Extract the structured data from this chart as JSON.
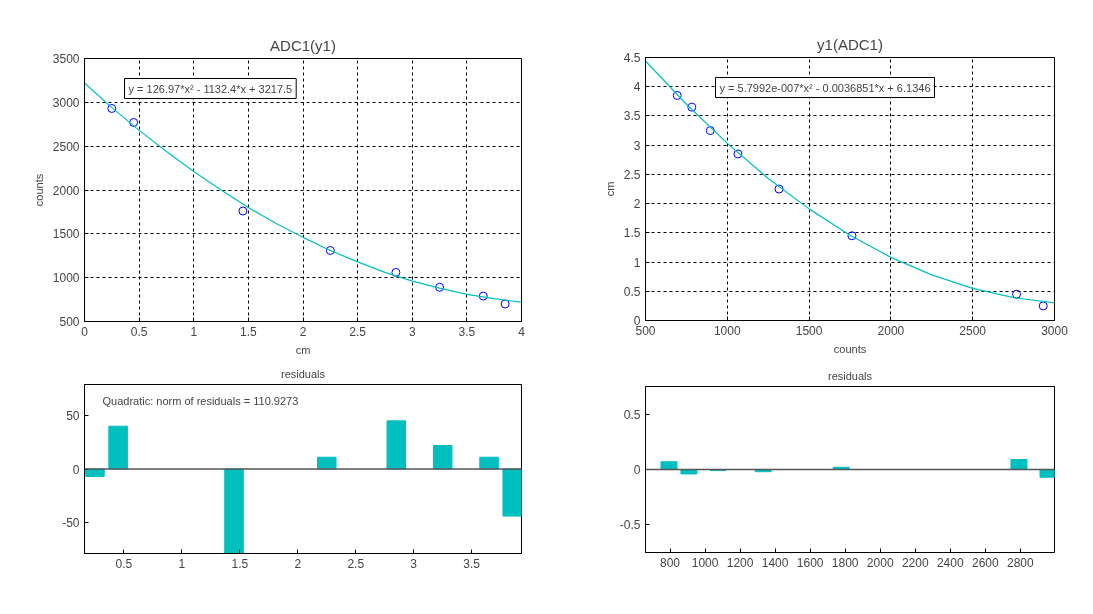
{
  "chart_data": [
    {
      "type": "scatter",
      "title": "ADC1(y1)",
      "xlabel": "cm",
      "ylabel": "counts",
      "xlim": [
        0,
        4
      ],
      "ylim": [
        500,
        3500
      ],
      "xticks": [
        0,
        0.5,
        1,
        1.5,
        2,
        2.5,
        3,
        3.5,
        4
      ],
      "yticks": [
        500,
        1000,
        1500,
        2000,
        2500,
        3000,
        3500
      ],
      "grid": true,
      "annotations": [
        "y = 126.97*x² - 1132.4*x + 3217.5"
      ],
      "series": [
        {
          "type": "scatter",
          "marker": "circle",
          "color": "#0000ff",
          "x": [
            0.25,
            0.45,
            1.45,
            2.25,
            2.85,
            3.25,
            3.65,
            3.85
          ],
          "values": [
            2930,
            2770,
            1760,
            1310,
            1060,
            890,
            790,
            700
          ]
        },
        {
          "type": "line",
          "color": "#00c0c0",
          "x": [
            0,
            0.25,
            0.5,
            0.75,
            1,
            1.25,
            1.5,
            1.75,
            2,
            2.25,
            2.5,
            2.75,
            3,
            3.25,
            3.5,
            3.75,
            4
          ],
          "values": [
            3220,
            2940,
            2680,
            2440,
            2210,
            2000,
            1800,
            1620,
            1460,
            1310,
            1180,
            1060,
            960,
            880,
            810,
            760,
            720
          ]
        }
      ]
    },
    {
      "type": "bar",
      "title": "residuals",
      "xlim": [
        0.16,
        3.93
      ],
      "ylim": [
        -79,
        79
      ],
      "xticks": [
        0.5,
        1,
        1.5,
        2,
        2.5,
        3,
        3.5
      ],
      "yticks": [
        -50,
        0,
        50
      ],
      "annotations": [
        "Quadratic: norm of residuals = 110.9273"
      ],
      "ref_lines": [
        {
          "axis": "y",
          "value": 0,
          "color": "#555555"
        }
      ],
      "series": [
        {
          "color": "#00bfbf",
          "x": [
            0.25,
            0.45,
            1.45,
            2.25,
            2.85,
            3.25,
            3.65,
            3.85
          ],
          "values": [
            -7,
            40,
            -79,
            11,
            45,
            22,
            11,
            -44
          ]
        }
      ]
    },
    {
      "type": "scatter",
      "title": "y1(ADC1)",
      "xlabel": "counts",
      "ylabel": "cm",
      "xlim": [
        500,
        3000
      ],
      "ylim": [
        0,
        4.5
      ],
      "xticks": [
        500,
        1000,
        1500,
        2000,
        2500,
        3000
      ],
      "yticks": [
        0,
        0.5,
        1,
        1.5,
        2,
        2.5,
        3,
        3.5,
        4,
        4.5
      ],
      "grid": true,
      "annotations": [
        "y = 5.7992e-007*x² - 0.0036851*x + 6.1346"
      ],
      "series": [
        {
          "type": "scatter",
          "marker": "circle",
          "color": "#0000ff",
          "x": [
            694,
            783,
            896,
            1065,
            1316,
            1762,
            2768,
            2931
          ],
          "values": [
            3.85,
            3.65,
            3.25,
            2.85,
            2.25,
            1.45,
            0.45,
            0.25
          ]
        },
        {
          "type": "line",
          "color": "#00c0c0",
          "x": [
            500,
            750,
            1000,
            1250,
            1500,
            1750,
            2000,
            2250,
            2500,
            2750,
            3000
          ],
          "values": [
            4.44,
            3.7,
            3.03,
            2.43,
            1.91,
            1.46,
            1.08,
            0.78,
            0.55,
            0.39,
            0.3
          ]
        }
      ]
    },
    {
      "type": "bar",
      "title": "residuals",
      "xlim": [
        660,
        2995
      ],
      "ylim": [
        -0.75,
        0.75
      ],
      "xticks": [
        800,
        1000,
        1200,
        1400,
        1600,
        1800,
        2000,
        2200,
        2400,
        2600,
        2800
      ],
      "yticks": [
        -0.5,
        0,
        0.5
      ],
      "ref_lines": [
        {
          "axis": "y",
          "value": 0,
          "color": "#555555"
        }
      ],
      "series": [
        {
          "color": "#00bfbf",
          "x": [
            794,
            908,
            1074,
            1332,
            1777,
            2792,
            2958
          ],
          "values": [
            0.07,
            -0.04,
            -0.01,
            -0.02,
            0.02,
            0.09,
            -0.07
          ]
        }
      ]
    }
  ]
}
